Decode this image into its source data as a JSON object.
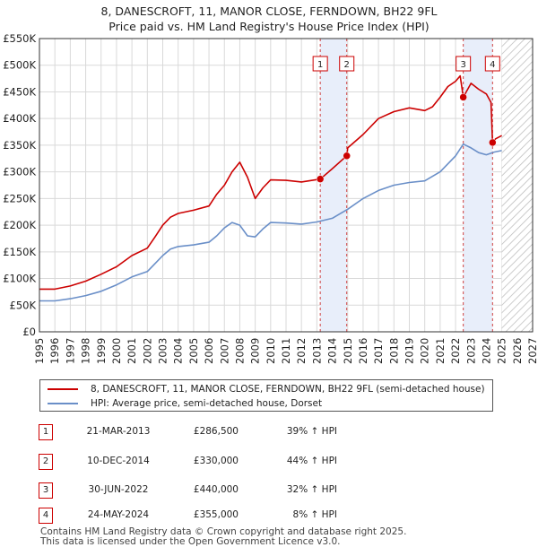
{
  "title": {
    "line1": "8, DANESCROFT, 11, MANOR CLOSE, FERNDOWN, BH22 9FL",
    "line2": "Price paid vs. HM Land Registry's House Price Index (HPI)"
  },
  "colors": {
    "property": "#cc0000",
    "hpi": "#6a8fc8",
    "band": "#e8eefa",
    "grid": "#d9d9d9"
  },
  "legend": {
    "property_label": "8, DANESCROFT, 11, MANOR CLOSE, FERNDOWN, BH22 9FL (semi-detached house)",
    "hpi_label": "HPI: Average price, semi-detached house, Dorset"
  },
  "sales": [
    {
      "num": "1",
      "date": "21-MAR-2013",
      "price": "£286,500",
      "pct": "39% ↑ HPI"
    },
    {
      "num": "2",
      "date": "10-DEC-2014",
      "price": "£330,000",
      "pct": "44% ↑ HPI"
    },
    {
      "num": "3",
      "date": "30-JUN-2022",
      "price": "£440,000",
      "pct": "32% ↑ HPI"
    },
    {
      "num": "4",
      "date": "24-MAY-2024",
      "price": "£355,000",
      "pct": "8% ↑ HPI"
    }
  ],
  "footer": {
    "line1": "Contains HM Land Registry data © Crown copyright and database right 2025.",
    "line2": "This data is licensed under the Open Government Licence v3.0."
  },
  "chart_data": {
    "type": "line",
    "title": "Price paid vs. HM Land Registry's House Price Index (HPI)",
    "xlabel": "",
    "ylabel": "",
    "xlim": [
      1995,
      2027
    ],
    "ylim": [
      0,
      550000
    ],
    "x_ticks": [
      1995,
      1996,
      1997,
      1998,
      1999,
      2000,
      2001,
      2002,
      2003,
      2004,
      2005,
      2006,
      2007,
      2008,
      2009,
      2010,
      2011,
      2012,
      2013,
      2014,
      2015,
      2016,
      2017,
      2018,
      2019,
      2020,
      2021,
      2022,
      2023,
      2024,
      2025,
      2026,
      2027
    ],
    "y_ticks": [
      {
        "value": 0,
        "label": "£0"
      },
      {
        "value": 50000,
        "label": "£50K"
      },
      {
        "value": 100000,
        "label": "£100K"
      },
      {
        "value": 150000,
        "label": "£150K"
      },
      {
        "value": 200000,
        "label": "£200K"
      },
      {
        "value": 250000,
        "label": "£250K"
      },
      {
        "value": 300000,
        "label": "£300K"
      },
      {
        "value": 350000,
        "label": "£350K"
      },
      {
        "value": 400000,
        "label": "£400K"
      },
      {
        "value": 450000,
        "label": "£450K"
      },
      {
        "value": 500000,
        "label": "£500K"
      },
      {
        "value": 550000,
        "label": "£550K"
      }
    ],
    "grid": true,
    "bands": [
      {
        "from": 2013.22,
        "to": 2014.94,
        "labels": [
          "1",
          "2"
        ]
      },
      {
        "from": 2022.5,
        "to": 2024.4,
        "labels": [
          "3",
          "4"
        ]
      }
    ],
    "hatch_from": 2025.0,
    "series": [
      {
        "name": "8, DANESCROFT, 11, MANOR CLOSE, FERNDOWN, BH22 9FL (semi-detached house)",
        "color": "#cc0000",
        "x": [
          1995,
          1996,
          1997,
          1998,
          1999,
          2000,
          2001,
          2002,
          2002.5,
          2003,
          2003.5,
          2004,
          2005,
          2006,
          2006.5,
          2007,
          2007.5,
          2008,
          2008.5,
          2009,
          2009.5,
          2010,
          2011,
          2012,
          2013.22,
          2014,
          2014.94,
          2015,
          2016,
          2017,
          2018,
          2019,
          2020,
          2020.5,
          2021,
          2021.5,
          2022,
          2022.3,
          2022.5,
          2023,
          2023.5,
          2024,
          2024.3,
          2024.4,
          2024.6,
          2025
        ],
        "y": [
          80000,
          80000,
          86000,
          95000,
          108000,
          122000,
          143000,
          157000,
          178000,
          200000,
          215000,
          222000,
          228000,
          236000,
          258000,
          275000,
          300000,
          318000,
          290000,
          250000,
          270000,
          285000,
          284000,
          281000,
          286500,
          306000,
          330000,
          345000,
          370000,
          400000,
          413000,
          420000,
          415000,
          422000,
          440000,
          460000,
          470000,
          480000,
          440000,
          466000,
          455000,
          446000,
          430000,
          355000,
          362000,
          368000
        ]
      },
      {
        "name": "HPI: Average price, semi-detached house, Dorset",
        "color": "#6a8fc8",
        "x": [
          1995,
          1996,
          1997,
          1998,
          1999,
          2000,
          2001,
          2002,
          2002.5,
          2003,
          2003.5,
          2004,
          2005,
          2006,
          2006.5,
          2007,
          2007.5,
          2008,
          2008.5,
          2009,
          2009.5,
          2010,
          2011,
          2012,
          2013,
          2014,
          2015,
          2016,
          2017,
          2018,
          2019,
          2020,
          2021,
          2021.5,
          2022,
          2022.5,
          2023,
          2023.5,
          2024,
          2024.5,
          2025
        ],
        "y": [
          58000,
          58000,
          62000,
          68000,
          76000,
          88000,
          103000,
          113000,
          128000,
          143000,
          155000,
          160000,
          163000,
          168000,
          180000,
          195000,
          205000,
          200000,
          180000,
          178000,
          193000,
          205000,
          204000,
          202000,
          206000,
          213000,
          230000,
          250000,
          265000,
          275000,
          280000,
          283000,
          300000,
          315000,
          330000,
          352000,
          345000,
          336000,
          332000,
          337000,
          340000
        ]
      }
    ],
    "sales_points": [
      {
        "label": "1",
        "x": 2013.22,
        "y": 286500
      },
      {
        "label": "2",
        "x": 2014.94,
        "y": 330000
      },
      {
        "label": "3",
        "x": 2022.5,
        "y": 440000
      },
      {
        "label": "4",
        "x": 2024.4,
        "y": 355000
      }
    ]
  }
}
